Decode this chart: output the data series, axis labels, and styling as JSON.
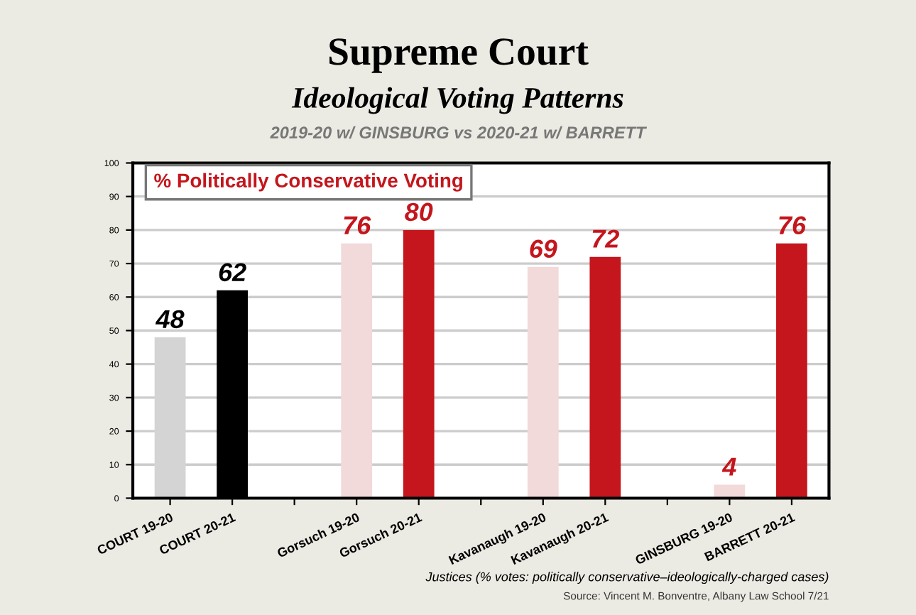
{
  "chart_data": {
    "type": "bar",
    "title": "Supreme Court",
    "subtitle": "Ideological Voting Patterns",
    "xlabel": "Justices (% votes: politically conservative–ideologically-charged cases)",
    "categories": [
      "COURT 19-20",
      "COURT 20-21",
      null,
      "Gorsuch 19-20",
      "Gorsuch 20-21",
      null,
      "Kavanaugh 19-20",
      "Kavanaugh 20-21",
      null,
      "GINSBURG 19-20",
      "BARRETT 20-21"
    ],
    "values": [
      48,
      62,
      null,
      76,
      80,
      null,
      69,
      72,
      null,
      4,
      76
    ],
    "colors": [
      "#d4d4d4",
      "#000000",
      null,
      "#f2d9da",
      "#c4161c",
      null,
      "#f2d9da",
      "#c4161c",
      null,
      "#f2d9da",
      "#c4161c"
    ],
    "data_labels": true,
    "ylim": [
      0,
      100
    ],
    "yticks": [
      0,
      10,
      20,
      30,
      40,
      50,
      60,
      70,
      80,
      90,
      100
    ],
    "grid": "y",
    "annotations": [
      "2019-20 w/ GINSBURG vs 2020-21 w/ BARRETT",
      "% Politically Conservative Voting",
      "Source: Vincent M. Bonventre, Albany Law School 7/21"
    ]
  }
}
